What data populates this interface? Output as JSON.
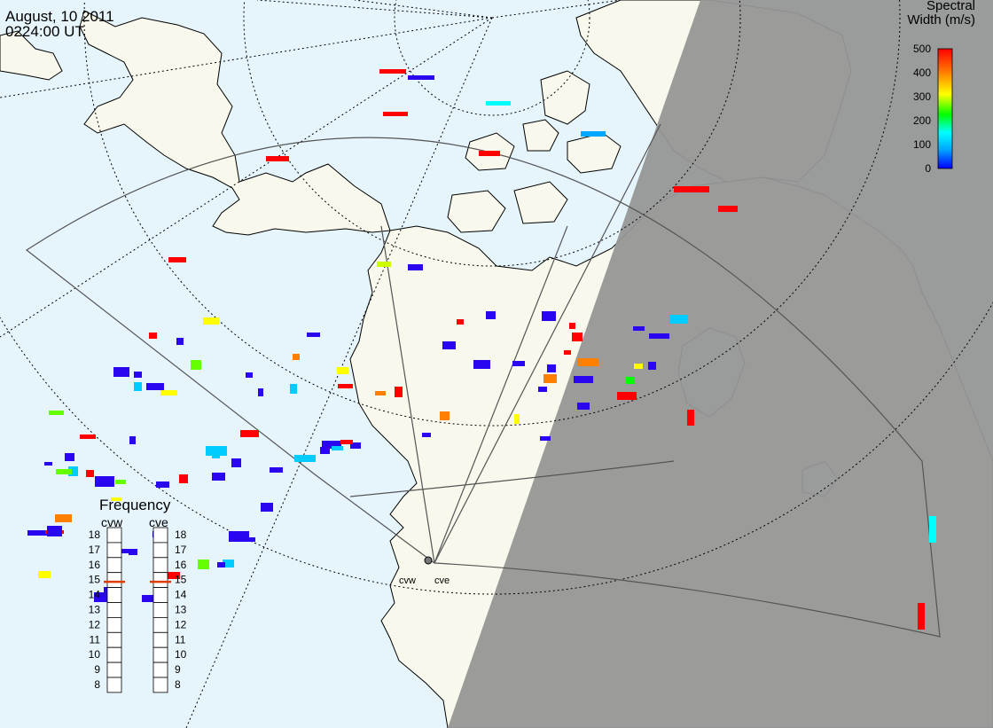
{
  "header": {
    "date": "August, 10 2011",
    "time": "0224:00 UT"
  },
  "colorbar": {
    "title_line1": "Spectral",
    "title_line2": "Width (m/s)",
    "ticks": [
      "500",
      "400",
      "300",
      "200",
      "100",
      "0"
    ],
    "stops": [
      "#0000ff",
      "#00a8ff",
      "#00ffff",
      "#00ff00",
      "#ffff00",
      "#ff8000",
      "#ff0000"
    ]
  },
  "frequency_panel": {
    "title": "Frequency",
    "radars": [
      {
        "name": "cvw",
        "selected_mhz": 15
      },
      {
        "name": "cve",
        "selected_mhz": 15
      }
    ],
    "ticks": [
      "18",
      "17",
      "16",
      "15",
      "14",
      "13",
      "12",
      "11",
      "10",
      "9",
      "8"
    ]
  },
  "radar_sites": [
    "cvw",
    "cve"
  ],
  "colors": {
    "ocean": "#e6f5fc",
    "land_day": "#f8f8ec",
    "night": "#969696",
    "scatter_main": "#2a06f0",
    "freq_marker": "#e03c00"
  },
  "layers": {
    "backscatter_bands": "",
    "colored_scatter": ""
  }
}
